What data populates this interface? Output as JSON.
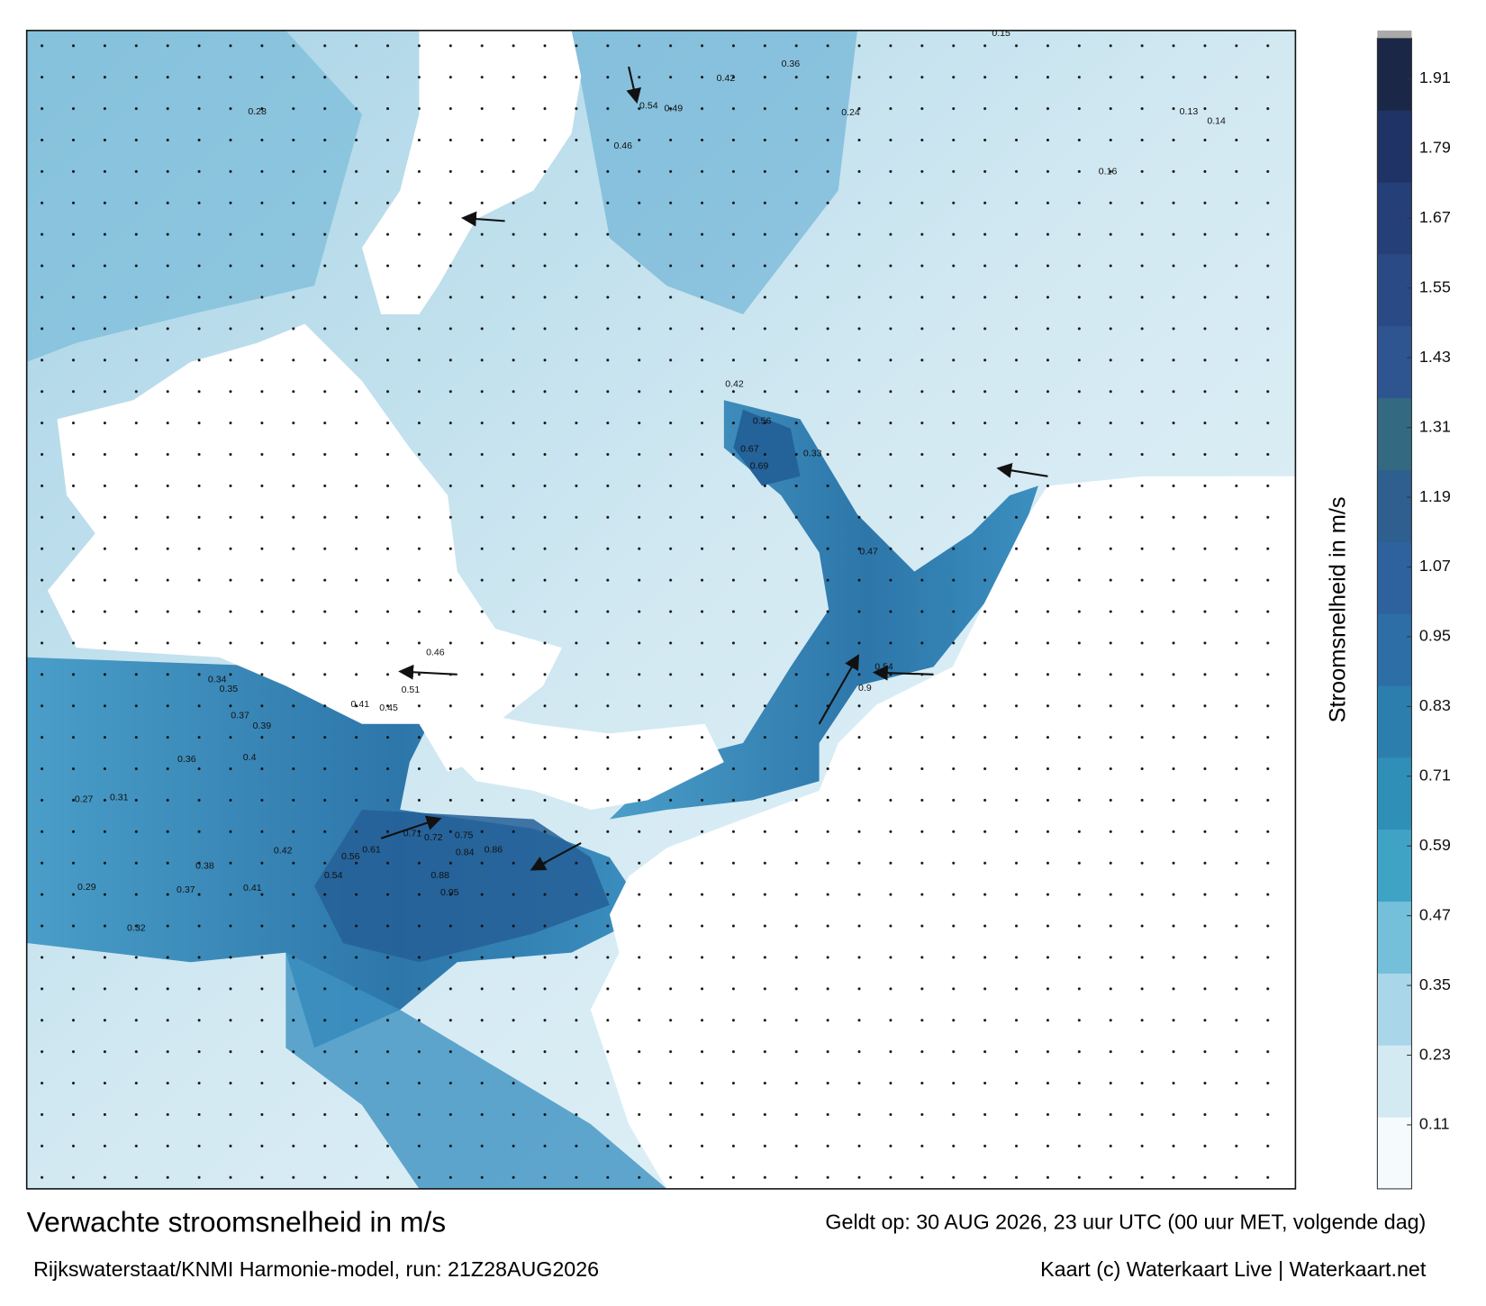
{
  "map": {
    "title": "Verwachte stroomsnelheid in m/s",
    "valid_time": "Geldt op: 30 AUG 2026, 23 uur UTC (00 uur MET, volgende dag)",
    "source": "Rijkswaterstaat/KNMI Harmonie-model, run: 21Z28AUG2026",
    "credit": "Kaart (c) Waterkaart Live | Waterkaart.net",
    "colorbar": {
      "label": "Stroomsnelheid in m/s",
      "lim": [
        0,
        1.98
      ],
      "ticks": [
        0.11,
        0.23,
        0.35,
        0.47,
        0.59,
        0.71,
        0.83,
        0.95,
        1.07,
        1.19,
        1.31,
        1.43,
        1.55,
        1.67,
        1.79,
        1.91
      ],
      "colors": [
        "#f5fafc",
        "#d3eaf3",
        "#a9d6e8",
        "#74bfd9",
        "#3fa3c6",
        "#2f8fb7",
        "#2c7fad",
        "#2c6ea5",
        "#2d629e",
        "#2f5f8f",
        "#336a82",
        "#2e5590",
        "#2a4a86",
        "#253f78",
        "#1f3366",
        "#1a2747"
      ]
    },
    "speed_labels": [
      0.75,
      0.86,
      0.84,
      0.95,
      0.88,
      0.72,
      0.71,
      0.61,
      0.56,
      0.54,
      0.42,
      0.38,
      0.41,
      0.37,
      0.32,
      0.29,
      0.27,
      0.31,
      0.36,
      0.4,
      0.39,
      0.37,
      0.35,
      0.34,
      0.45,
      0.41,
      0.51,
      0.46,
      0.69,
      0.67,
      0.56,
      0.9,
      0.54,
      0.47,
      0.33,
      0.42,
      0.54,
      0.49,
      0.46,
      0.42,
      0.36,
      0.24,
      0.15,
      0.13,
      0.14,
      0.16,
      0.28
    ]
  }
}
